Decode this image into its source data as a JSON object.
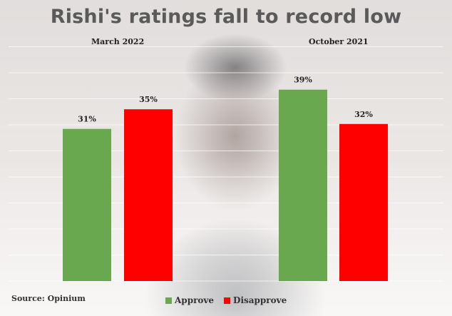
{
  "chart_data": {
    "type": "bar",
    "title": "Rishi's ratings fall to record low",
    "groups": [
      {
        "label": "March 2022",
        "values": {
          "Approve": 31,
          "Disapprove": 35
        },
        "data_labels": [
          "31%",
          "35%"
        ]
      },
      {
        "label": "October 2021",
        "values": {
          "Approve": 39,
          "Disapprove": 32
        },
        "data_labels": [
          "39%",
          "32%"
        ]
      }
    ],
    "series": [
      {
        "name": "Approve",
        "color": "#6aa84f"
      },
      {
        "name": "Disapprove",
        "color": "#ff0000"
      }
    ],
    "ylim": [
      0,
      45
    ],
    "grid": true,
    "legend_position": "bottom-center",
    "source": "Source: Opinium"
  }
}
